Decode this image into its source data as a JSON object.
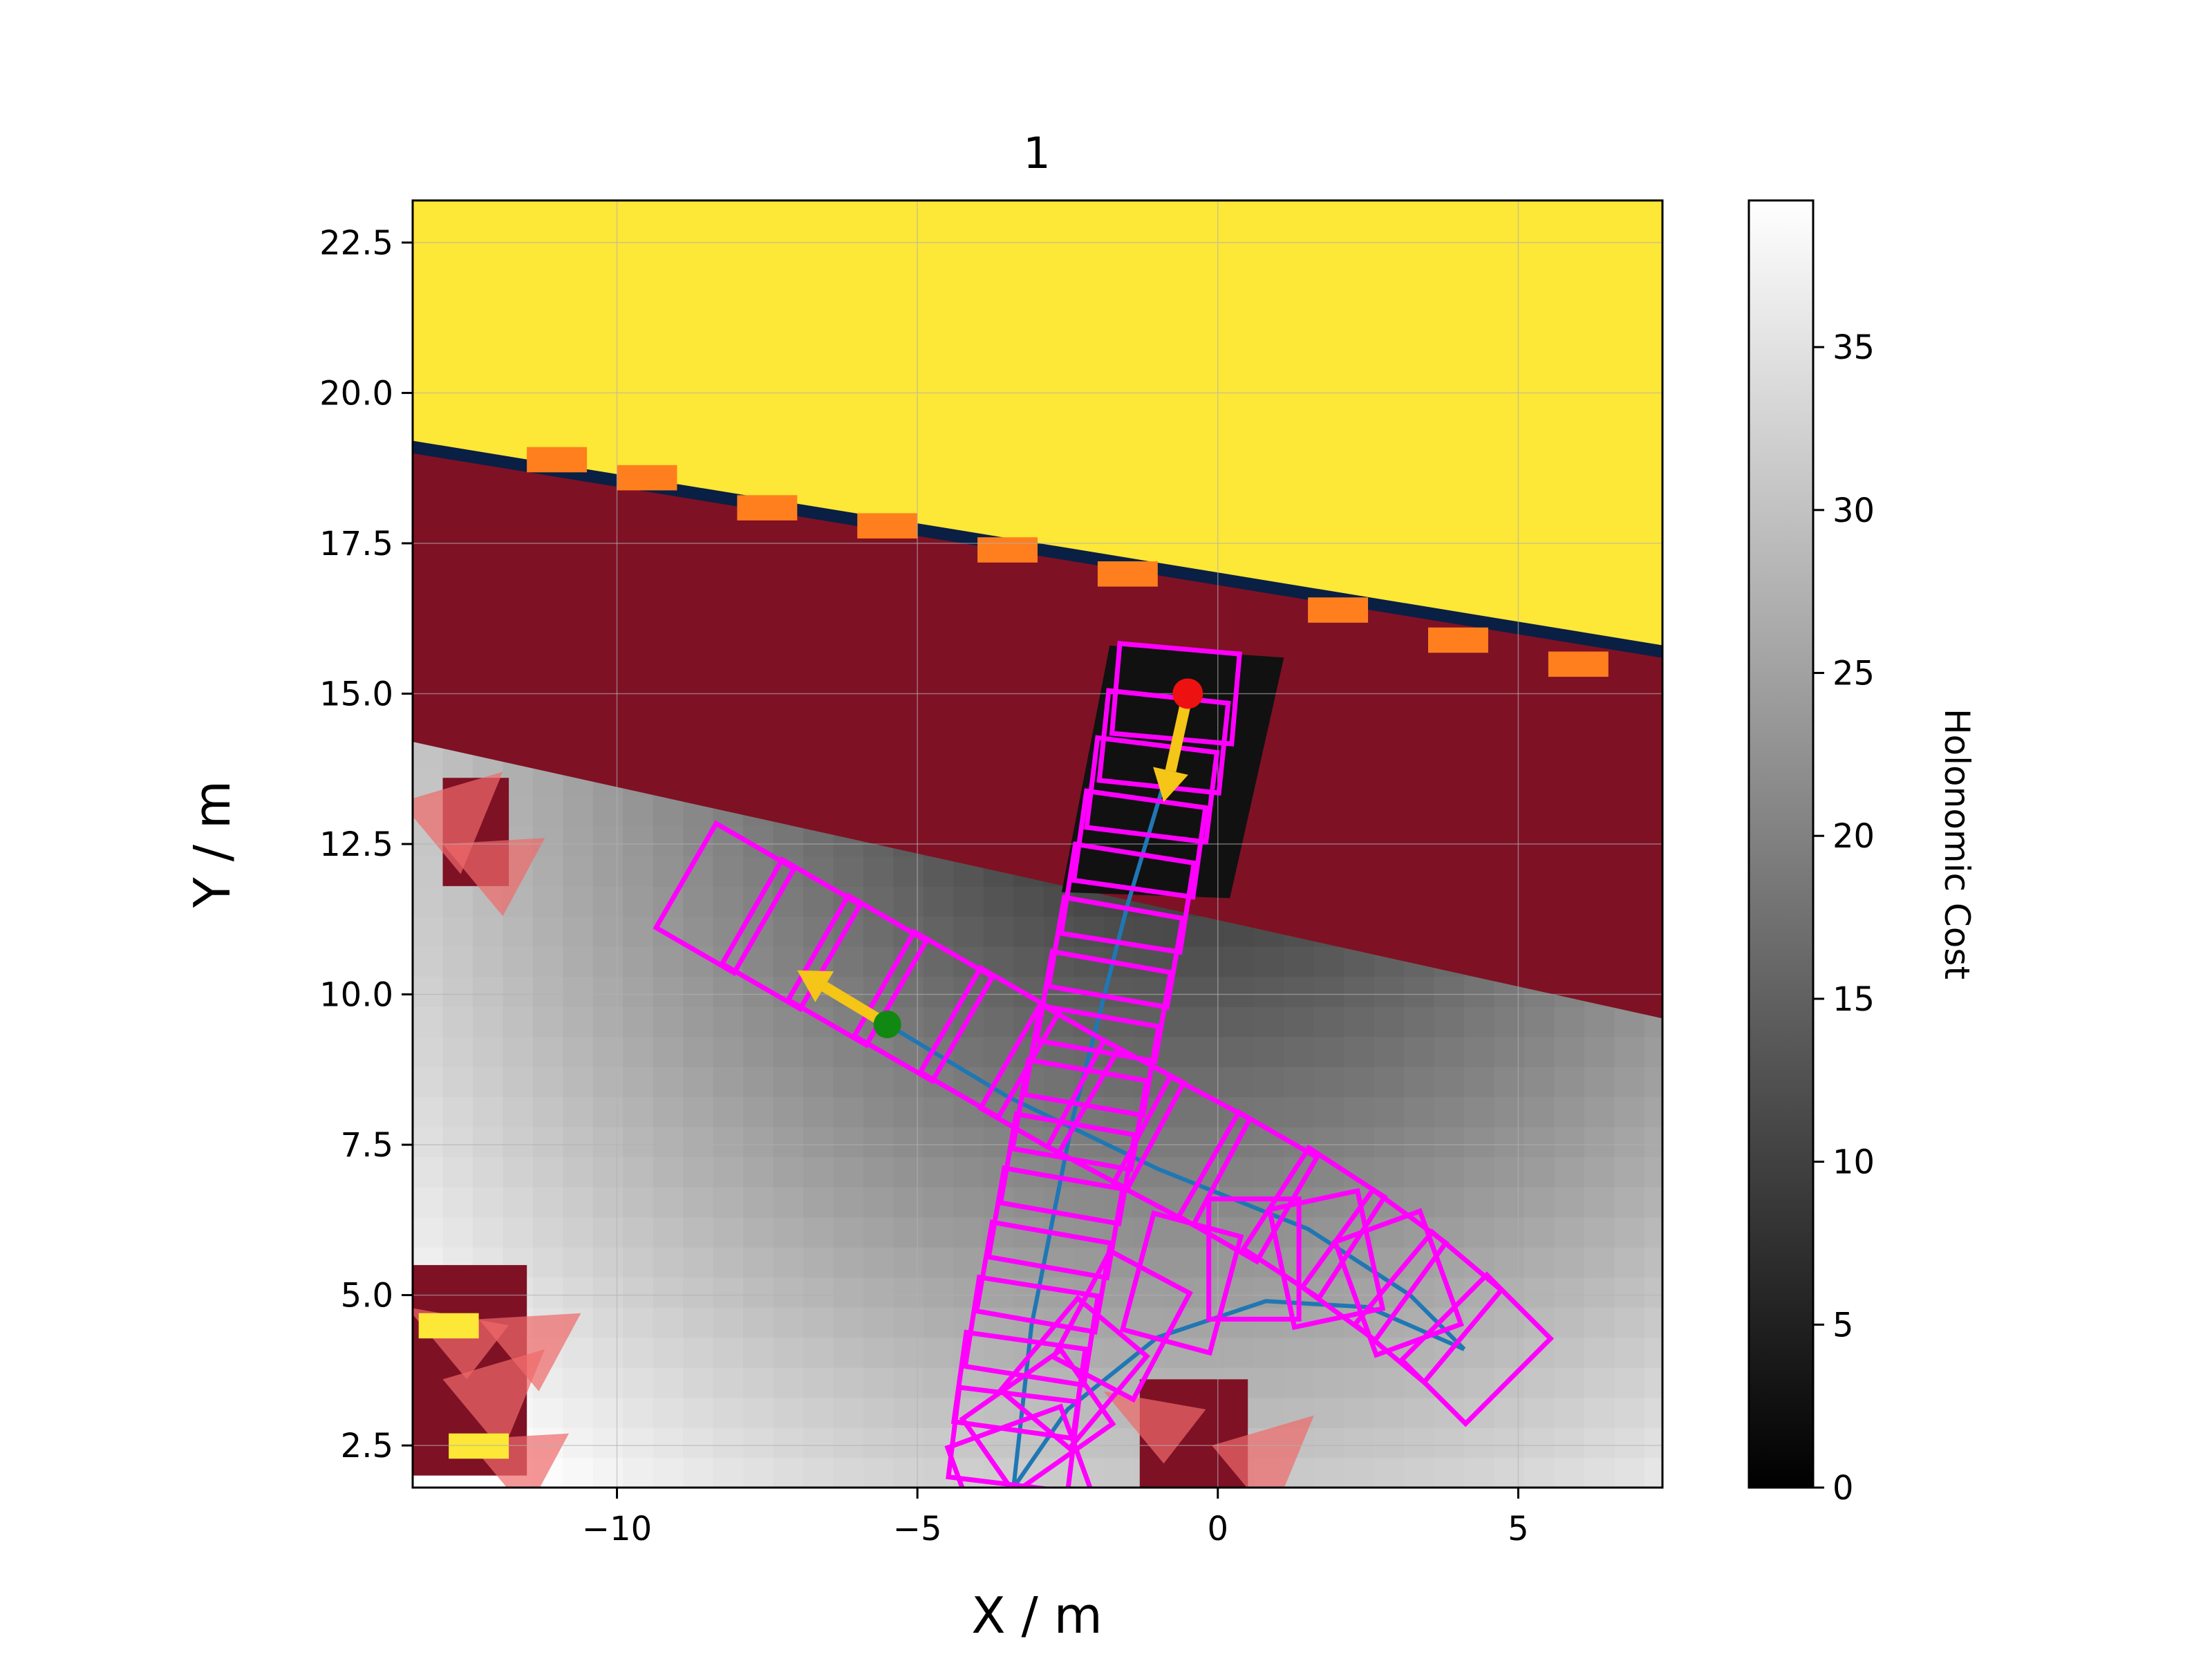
{
  "chart_data": {
    "type": "heatmap",
    "title": "1",
    "xlabel": "X / m",
    "ylabel": "Y / m",
    "xlim": [
      -13.4,
      7.4
    ],
    "ylim": [
      1.8,
      23.2
    ],
    "xticks": [
      -10,
      -5,
      0,
      5
    ],
    "xtick_labels": [
      "−10",
      "−5",
      "0",
      "5"
    ],
    "yticks": [
      2.5,
      5.0,
      7.5,
      10.0,
      12.5,
      15.0,
      17.5,
      20.0,
      22.5
    ],
    "ytick_labels": [
      "2.5",
      "5.0",
      "7.5",
      "10.0",
      "12.5",
      "15.0",
      "17.5",
      "20.0",
      "22.5"
    ],
    "grid": true,
    "colorbar": {
      "label": "Holonomic Cost",
      "range": [
        0,
        39.5
      ],
      "ticks": [
        0,
        5,
        10,
        15,
        20,
        25,
        30,
        35
      ],
      "tick_labels": [
        "0",
        "5",
        "10",
        "15",
        "20",
        "25",
        "30",
        "35"
      ],
      "colormap": "gray"
    },
    "cost_field": {
      "minimum_point": [
        -0.5,
        15.0
      ],
      "gradient_scale": 1.0
    },
    "obstacle_regions": [
      {
        "kind": "free-space",
        "color": "#fde737",
        "polygon": [
          [
            -13.4,
            23.2
          ],
          [
            7.4,
            23.2
          ],
          [
            7.4,
            15.7
          ],
          [
            -13.4,
            19.1
          ]
        ]
      },
      {
        "kind": "occupied",
        "color": "#7f1125",
        "polygon": [
          [
            -13.4,
            19.1
          ],
          [
            7.4,
            15.7
          ],
          [
            7.4,
            9.6
          ],
          [
            -13.4,
            14.2
          ]
        ]
      },
      {
        "kind": "occupied",
        "color": "#7f1125",
        "polygon": [
          [
            -13.4,
            5.5
          ],
          [
            -11.5,
            5.5
          ],
          [
            -11.5,
            2.0
          ],
          [
            -13.4,
            2.0
          ]
        ]
      },
      {
        "kind": "occupied",
        "color": "#7f1125",
        "polygon": [
          [
            -12.9,
            13.6
          ],
          [
            -11.8,
            13.6
          ],
          [
            -11.8,
            11.8
          ],
          [
            -12.9,
            11.8
          ]
        ]
      },
      {
        "kind": "occupied",
        "color": "#7f1125",
        "polygon": [
          [
            -1.3,
            3.6
          ],
          [
            0.5,
            3.6
          ],
          [
            0.5,
            1.8
          ],
          [
            -1.3,
            1.8
          ]
        ]
      }
    ],
    "corridor": {
      "color": "#111111",
      "polygon": [
        [
          -1.8,
          15.8
        ],
        [
          1.1,
          15.6
        ],
        [
          0.2,
          11.6
        ],
        [
          -2.6,
          11.7
        ]
      ]
    },
    "start": {
      "x": -5.5,
      "y": 9.5,
      "color": "#118811"
    },
    "goal": {
      "x": -0.5,
      "y": 15.0,
      "color": "#ee1111"
    },
    "start_heading": {
      "from": [
        -5.5,
        9.5
      ],
      "to": [
        -7.0,
        10.4
      ],
      "color": "#f5c518"
    },
    "goal_heading": {
      "from": [
        -0.5,
        15.0
      ],
      "to": [
        -0.9,
        13.2
      ],
      "color": "#f5c518"
    },
    "paths": [
      {
        "color": "#1f77b4",
        "points": [
          [
            -5.5,
            9.5
          ],
          [
            -3.5,
            8.3
          ],
          [
            -1.0,
            7.1
          ],
          [
            1.5,
            6.1
          ],
          [
            3.2,
            5.0
          ],
          [
            4.1,
            4.1
          ]
        ]
      },
      {
        "color": "#1f77b4",
        "points": [
          [
            4.1,
            4.1
          ],
          [
            2.5,
            4.8
          ],
          [
            0.8,
            4.9
          ],
          [
            -1.0,
            4.3
          ],
          [
            -2.5,
            3.1
          ],
          [
            -3.4,
            1.8
          ]
        ]
      },
      {
        "color": "#1f77b4",
        "points": [
          [
            -3.4,
            1.8
          ],
          [
            -3.1,
            4.5
          ],
          [
            -2.4,
            8.0
          ],
          [
            -1.5,
            11.5
          ],
          [
            -0.9,
            13.5
          ],
          [
            -0.5,
            15.0
          ]
        ]
      }
    ],
    "footprints": {
      "color": "#ff00ff",
      "length": 1.5,
      "width": 2.0,
      "poses": [
        [
          -8.2,
          11.6,
          -30
        ],
        [
          -7.1,
          11.0,
          -30
        ],
        [
          -6.0,
          10.4,
          -30
        ],
        [
          -4.9,
          9.8,
          -30
        ],
        [
          -3.8,
          9.2,
          -30
        ],
        [
          -2.8,
          8.6,
          -30
        ],
        [
          -1.7,
          8.0,
          -28
        ],
        [
          -0.6,
          7.4,
          -28
        ],
        [
          0.5,
          6.8,
          -30
        ],
        [
          1.6,
          6.2,
          -33
        ],
        [
          2.6,
          5.5,
          -36
        ],
        [
          3.5,
          4.8,
          -40
        ],
        [
          4.3,
          4.1,
          -45
        ],
        [
          3.0,
          5.2,
          20
        ],
        [
          1.8,
          5.6,
          12
        ],
        [
          0.6,
          5.6,
          0
        ],
        [
          -0.6,
          5.2,
          -15
        ],
        [
          -1.6,
          4.5,
          -28
        ],
        [
          -2.4,
          3.7,
          -40
        ],
        [
          -3.0,
          2.9,
          -55
        ],
        [
          -3.3,
          2.1,
          -70
        ],
        [
          -3.4,
          2.6,
          83
        ],
        [
          -3.3,
          3.5,
          82
        ],
        [
          -3.1,
          4.4,
          81
        ],
        [
          -2.9,
          5.3,
          80
        ],
        [
          -2.7,
          6.2,
          80
        ],
        [
          -2.5,
          7.1,
          80
        ],
        [
          -2.3,
          8.0,
          80
        ],
        [
          -2.1,
          8.9,
          80
        ],
        [
          -1.9,
          9.8,
          80
        ],
        [
          -1.7,
          10.7,
          80
        ],
        [
          -1.5,
          11.6,
          81
        ],
        [
          -1.3,
          12.5,
          82
        ],
        [
          -1.1,
          13.4,
          83
        ],
        [
          -0.9,
          14.2,
          84
        ],
        [
          -0.7,
          15.0,
          85
        ]
      ]
    },
    "obstacle_markers": [
      {
        "x": -9.5,
        "y": 18.6,
        "color": "#ff7f1e"
      },
      {
        "x": -7.5,
        "y": 18.1,
        "color": "#ff7f1e"
      },
      {
        "x": -5.5,
        "y": 17.8,
        "color": "#ff7f1e"
      },
      {
        "x": -3.5,
        "y": 17.4,
        "color": "#ff7f1e"
      },
      {
        "x": -1.5,
        "y": 17.0,
        "color": "#ff7f1e"
      },
      {
        "x": 2.0,
        "y": 16.4,
        "color": "#ff7f1e"
      },
      {
        "x": 4.0,
        "y": 15.9,
        "color": "#ff7f1e"
      },
      {
        "x": 6.0,
        "y": 15.5,
        "color": "#ff7f1e"
      },
      {
        "x": -11.0,
        "y": 18.9,
        "color": "#ff7f1e"
      },
      {
        "x": -12.8,
        "y": 4.5,
        "color": "#fde737"
      },
      {
        "x": -12.3,
        "y": 2.5,
        "color": "#fde737"
      }
    ],
    "noise_triangles": {
      "color": "#ef6a6a"
    }
  }
}
